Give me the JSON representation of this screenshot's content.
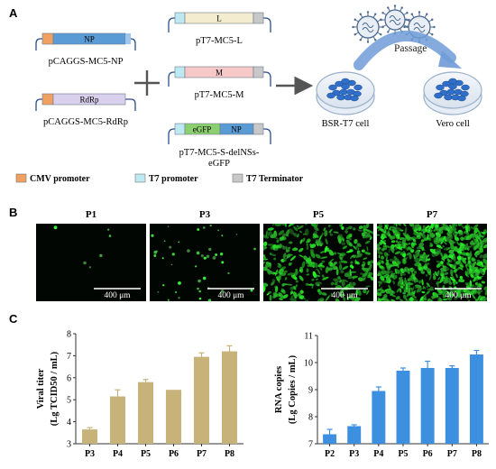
{
  "panels": {
    "a": "A",
    "b": "B",
    "c": "C"
  },
  "plasmids": {
    "np": {
      "gene": "NP",
      "name": "pCAGGS-MC5-NP"
    },
    "rdrp": {
      "gene": "RdRp",
      "name": "pCAGGS-MC5-RdRp"
    },
    "l": {
      "gene": "L",
      "name": "pT7-MC5-L"
    },
    "m": {
      "gene": "M",
      "name": "pT7-MC5-M"
    },
    "s": {
      "gene1": "eGFP",
      "gene2": "NP",
      "name_line1": "pT7-MC5-S-delNSs-",
      "name_line2": "eGFP"
    }
  },
  "cells": {
    "bsr": "BSR-T7 cell",
    "vero": "Vero cell",
    "passage": "Passage"
  },
  "legend": {
    "cmv": "CMV promoter",
    "t7p": "T7 promoter",
    "t7t": "T7 Terminator"
  },
  "colors": {
    "cmv": "#f0a060",
    "t7p": "#bfe9f2",
    "t7t": "#c8c8c8",
    "np_gene": "#5b9bd5",
    "rdrp_gene": "#d8d0ec",
    "l_gene": "#f3eccf",
    "m_gene": "#f6c8c8",
    "egfp_gene": "#8ccf6e",
    "bar_titer": "#c7b37a",
    "bar_rna": "#3d8fe0"
  },
  "micrographs": [
    {
      "label": "P1",
      "scale": "400 μm",
      "density": "sparse"
    },
    {
      "label": "P3",
      "scale": "400 μm",
      "density": "low"
    },
    {
      "label": "P5",
      "scale": "400 μm",
      "density": "high"
    },
    {
      "label": "P7",
      "scale": "400 μm",
      "density": "very-high"
    }
  ],
  "chart_data": [
    {
      "type": "bar",
      "categories": [
        "P3",
        "P4",
        "P5",
        "P6",
        "P7",
        "P8"
      ],
      "values": [
        3.65,
        5.15,
        5.8,
        5.45,
        6.95,
        7.2
      ],
      "errors": [
        0.08,
        0.3,
        0.12,
        0.0,
        0.18,
        0.25
      ],
      "ylabel_line1": "Viral titer",
      "ylabel_line2": "(Lg TCID50 / mL)",
      "ylim": [
        3,
        8
      ],
      "yticks": [
        3,
        4,
        5,
        6,
        7,
        8
      ]
    },
    {
      "type": "bar",
      "categories": [
        "P2",
        "P3",
        "P4",
        "P5",
        "P6",
        "P7",
        "P8"
      ],
      "values": [
        7.35,
        7.65,
        8.95,
        9.7,
        9.8,
        9.8,
        10.3
      ],
      "errors": [
        0.18,
        0.05,
        0.15,
        0.1,
        0.25,
        0.08,
        0.15
      ],
      "ylabel_line1": "RNA copies",
      "ylabel_line2": "(Lg Copies / mL)",
      "ylim": [
        7,
        11
      ],
      "yticks": [
        7,
        8,
        9,
        10,
        11
      ]
    }
  ]
}
